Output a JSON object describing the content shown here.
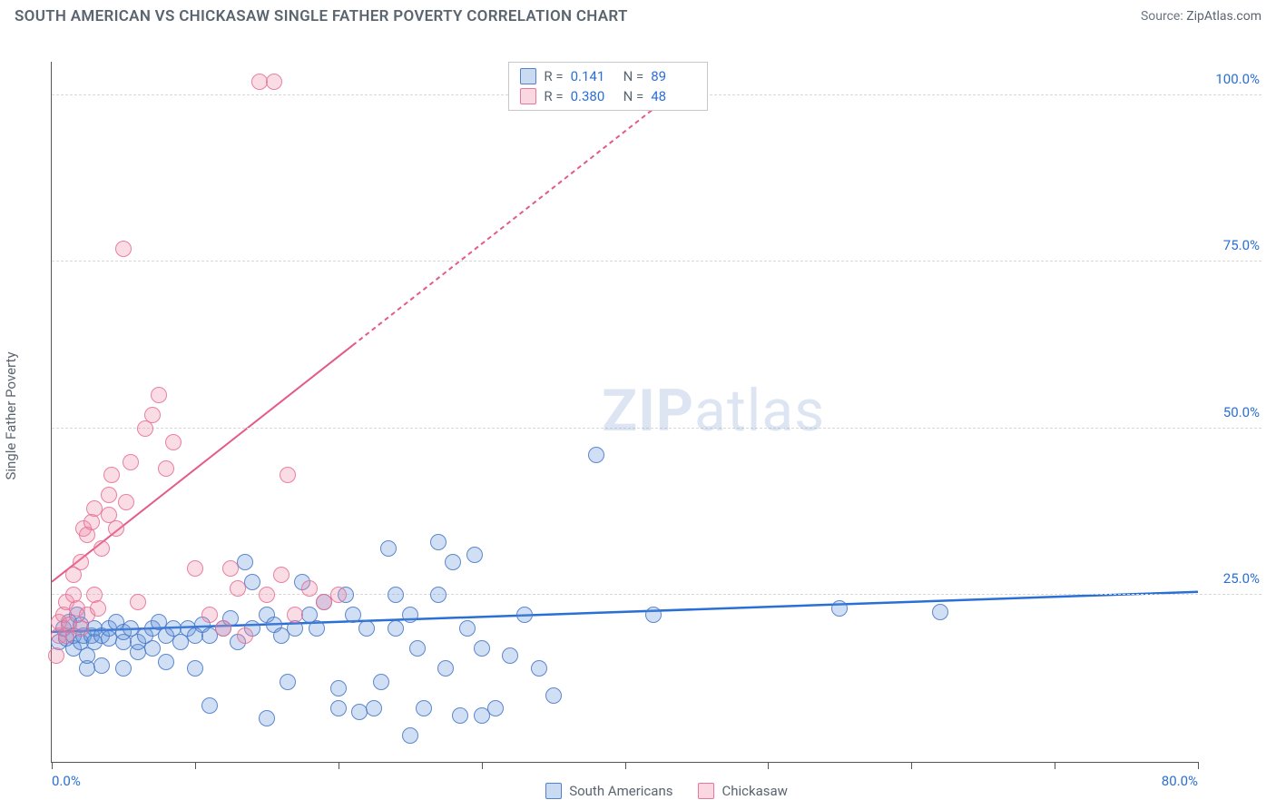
{
  "header": {
    "title": "SOUTH AMERICAN VS CHICKASAW SINGLE FATHER POVERTY CORRELATION CHART",
    "source_label": "Source: ",
    "source_value": "ZipAtlas.com"
  },
  "chart": {
    "type": "scatter",
    "y_axis_label": "Single Father Poverty",
    "watermark": "ZIPatlas",
    "background_color": "#ffffff",
    "grid_color": "#d8d8d8",
    "axis_color": "#555555",
    "text_color": "#5a6570",
    "value_color": "#2a6fd6",
    "xlim": [
      0,
      80
    ],
    "ylim": [
      0,
      105
    ],
    "x_ticks": [
      0,
      10,
      20,
      30,
      40,
      50,
      60,
      70,
      80
    ],
    "x_tick_labels": {
      "0": "0.0%",
      "80": "80.0%"
    },
    "y_ticks": [
      25,
      50,
      75,
      100
    ],
    "y_tick_labels": {
      "25": "25.0%",
      "50": "50.0%",
      "75": "75.0%",
      "100": "100.0%"
    },
    "marker_size": 18,
    "series": [
      {
        "name": "South Americans",
        "color_fill": "rgba(100,150,220,0.30)",
        "color_stroke": "rgba(70,120,200,0.85)",
        "stats": {
          "R": "0.141",
          "N": "89"
        },
        "trend": {
          "x1": 0,
          "y1": 19.5,
          "x2": 80,
          "y2": 25.5,
          "color": "#2a6fd6",
          "width": 2.5,
          "dash": "none"
        },
        "points": [
          [
            0.5,
            18
          ],
          [
            0.8,
            20
          ],
          [
            1,
            18.5
          ],
          [
            1.2,
            21
          ],
          [
            1.5,
            17
          ],
          [
            1.5,
            19
          ],
          [
            1.8,
            22
          ],
          [
            2,
            18
          ],
          [
            2,
            20.5
          ],
          [
            2.2,
            19
          ],
          [
            2.5,
            14
          ],
          [
            2.5,
            16
          ],
          [
            2.8,
            19
          ],
          [
            3,
            18
          ],
          [
            3,
            20
          ],
          [
            3.5,
            14.5
          ],
          [
            3.5,
            19
          ],
          [
            4,
            18.5
          ],
          [
            4,
            20
          ],
          [
            4.5,
            21
          ],
          [
            5,
            14
          ],
          [
            5,
            18
          ],
          [
            5,
            19.5
          ],
          [
            5.5,
            20
          ],
          [
            6,
            16.5
          ],
          [
            6,
            18
          ],
          [
            6.5,
            19
          ],
          [
            7,
            17
          ],
          [
            7,
            20
          ],
          [
            7.5,
            21
          ],
          [
            8,
            15
          ],
          [
            8,
            19
          ],
          [
            8.5,
            20
          ],
          [
            9,
            18
          ],
          [
            9.5,
            20
          ],
          [
            10,
            14
          ],
          [
            10,
            19
          ],
          [
            10.5,
            20.5
          ],
          [
            11,
            8.5
          ],
          [
            11,
            19
          ],
          [
            12,
            20
          ],
          [
            12.5,
            21.5
          ],
          [
            13,
            18
          ],
          [
            13.5,
            30
          ],
          [
            14,
            20
          ],
          [
            14,
            27
          ],
          [
            15,
            6.5
          ],
          [
            15,
            22
          ],
          [
            15.5,
            20.5
          ],
          [
            16,
            19
          ],
          [
            16.5,
            12
          ],
          [
            17,
            20
          ],
          [
            17.5,
            27
          ],
          [
            18,
            22
          ],
          [
            18.5,
            20
          ],
          [
            19,
            24
          ],
          [
            20,
            8
          ],
          [
            20,
            11
          ],
          [
            20.5,
            25
          ],
          [
            21,
            22
          ],
          [
            21.5,
            7.5
          ],
          [
            22,
            20
          ],
          [
            22.5,
            8
          ],
          [
            23,
            12
          ],
          [
            23.5,
            32
          ],
          [
            24,
            25
          ],
          [
            24,
            20
          ],
          [
            25,
            4
          ],
          [
            25,
            22
          ],
          [
            25.5,
            17
          ],
          [
            26,
            8
          ],
          [
            27,
            33
          ],
          [
            27,
            25
          ],
          [
            27.5,
            14
          ],
          [
            28,
            30
          ],
          [
            28.5,
            7
          ],
          [
            29,
            20
          ],
          [
            29.5,
            31
          ],
          [
            30,
            7
          ],
          [
            30,
            17
          ],
          [
            31,
            8
          ],
          [
            32,
            16
          ],
          [
            33,
            22
          ],
          [
            34,
            14
          ],
          [
            35,
            10
          ],
          [
            38,
            46
          ],
          [
            42,
            22
          ],
          [
            55,
            23
          ],
          [
            62,
            22.5
          ]
        ]
      },
      {
        "name": "Chickasaw",
        "color_fill": "rgba(240,140,170,0.30)",
        "color_stroke": "rgba(230,110,150,0.85)",
        "stats": {
          "R": "0.380",
          "N": "48"
        },
        "trend": {
          "x1": 0,
          "y1": 27,
          "x2": 45,
          "y2": 103,
          "color": "#e45a88",
          "width": 2,
          "dash": "solid_then_dash",
          "solid_until_x": 21
        },
        "points": [
          [
            0.3,
            16
          ],
          [
            0.5,
            19
          ],
          [
            0.5,
            21
          ],
          [
            0.8,
            22
          ],
          [
            1,
            19
          ],
          [
            1,
            24
          ],
          [
            1.2,
            20.5
          ],
          [
            1.5,
            25
          ],
          [
            1.5,
            28
          ],
          [
            1.8,
            23
          ],
          [
            2,
            20
          ],
          [
            2,
            30
          ],
          [
            2.2,
            35
          ],
          [
            2.5,
            22
          ],
          [
            2.5,
            34
          ],
          [
            2.8,
            36
          ],
          [
            3,
            25
          ],
          [
            3,
            38
          ],
          [
            3.2,
            23
          ],
          [
            3.5,
            32
          ],
          [
            4,
            37
          ],
          [
            4,
            40
          ],
          [
            4.2,
            43
          ],
          [
            4.5,
            35
          ],
          [
            5,
            77
          ],
          [
            5.2,
            39
          ],
          [
            5.5,
            45
          ],
          [
            6,
            24
          ],
          [
            6.5,
            50
          ],
          [
            7,
            52
          ],
          [
            7.5,
            55
          ],
          [
            8,
            44
          ],
          [
            8.5,
            48
          ],
          [
            10,
            29
          ],
          [
            11,
            22
          ],
          [
            12,
            20
          ],
          [
            12.5,
            29
          ],
          [
            13,
            26
          ],
          [
            13.5,
            19
          ],
          [
            14.5,
            102
          ],
          [
            15,
            25
          ],
          [
            15.5,
            102
          ],
          [
            16,
            28
          ],
          [
            16.5,
            43
          ],
          [
            17,
            22
          ],
          [
            18,
            26
          ],
          [
            19,
            24
          ],
          [
            20,
            25
          ]
        ]
      }
    ],
    "legend_bottom": [
      {
        "swatch": "blue",
        "label": "South Americans"
      },
      {
        "swatch": "pink",
        "label": "Chickasaw"
      }
    ],
    "legend_top_labels": {
      "R": "R =",
      "N": "N ="
    }
  }
}
